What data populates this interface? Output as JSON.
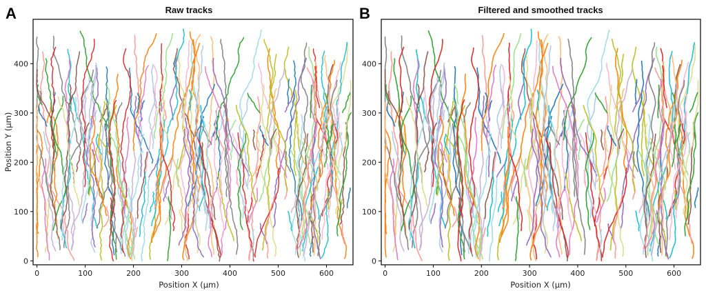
{
  "palette": [
    "#1f77b4",
    "#ff7f0e",
    "#2ca02c",
    "#d62728",
    "#9467bd",
    "#8c564b",
    "#e377c2",
    "#7f7f7f",
    "#bcbd22",
    "#17becf",
    "#aec7e8",
    "#ffbb78",
    "#98df8a",
    "#ff9896",
    "#c5b0d5",
    "#f7b6d2",
    "#dbdb8d",
    "#9edae5"
  ],
  "chart_data": [
    {
      "type": "line",
      "panel_letter": "A",
      "title": "Raw tracks",
      "xlabel": "Position X (µm)",
      "ylabel": "Position Y (µm)",
      "xlim": [
        -8,
        655
      ],
      "ylim": [
        -8,
        490
      ],
      "xticks": [
        0,
        100,
        200,
        300,
        400,
        500,
        600
      ],
      "yticks": [
        0,
        100,
        200,
        300,
        400
      ],
      "grid": false,
      "legend": "none",
      "series_count": 260,
      "start_y_range": [
        0,
        320
      ],
      "end_y_range": [
        30,
        470
      ],
      "style": "raw"
    },
    {
      "type": "line",
      "panel_letter": "B",
      "title": "Filtered and smoothed tracks",
      "xlabel": "Position X (µm)",
      "ylabel": "",
      "xlim": [
        -8,
        655
      ],
      "ylim": [
        -8,
        490
      ],
      "xticks": [
        0,
        100,
        200,
        300,
        400,
        500,
        600
      ],
      "yticks": [
        0,
        100,
        200,
        300,
        400
      ],
      "grid": false,
      "legend": "none",
      "series_count": 260,
      "start_y_range": [
        0,
        320
      ],
      "end_y_range": [
        30,
        470
      ],
      "style": "smoothed"
    }
  ]
}
